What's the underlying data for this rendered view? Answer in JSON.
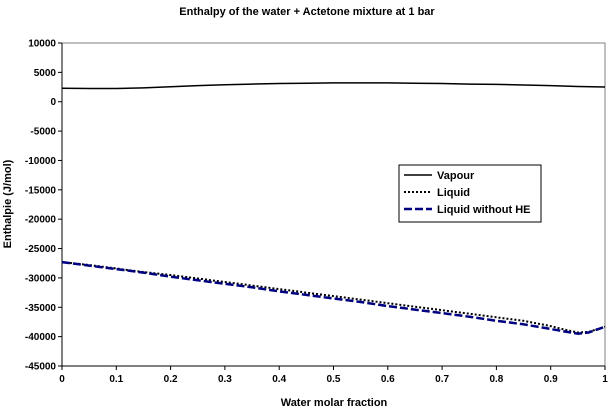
{
  "chart_data": {
    "type": "line",
    "title": "Enthalpy of the water + Actetone mixture at 1 bar",
    "xlabel": "Water molar fraction",
    "ylabel": "Enthalpie (J/mol)",
    "xlim": [
      0,
      1
    ],
    "ylim": [
      -45000,
      10000
    ],
    "xticks": [
      0,
      0.1,
      0.2,
      0.3,
      0.4,
      0.5,
      0.6,
      0.7,
      0.8,
      0.9,
      1
    ],
    "xtick_labels": [
      "0",
      "0.1",
      "0.2",
      "0.3",
      "0.4",
      "0.5",
      "0.6",
      "0.7",
      "0.8",
      "0.9",
      "1"
    ],
    "yticks": [
      10000,
      5000,
      0,
      -5000,
      -10000,
      -15000,
      -20000,
      -25000,
      -30000,
      -35000,
      -40000,
      -45000
    ],
    "ytick_labels": [
      "10000",
      "5000",
      "0",
      "-5000",
      "-10000",
      "-15000",
      "-20000",
      "-25000",
      "-30000",
      "-35000",
      "-40000",
      "-45000"
    ],
    "grid": false,
    "legend_position": "right-middle",
    "series": [
      {
        "name": "Vapour",
        "color": "#000000",
        "style": "solid",
        "x": [
          0,
          0.05,
          0.1,
          0.15,
          0.2,
          0.25,
          0.3,
          0.35,
          0.4,
          0.45,
          0.5,
          0.55,
          0.6,
          0.65,
          0.7,
          0.75,
          0.8,
          0.85,
          0.9,
          0.95,
          1
        ],
        "y": [
          2300,
          2250,
          2250,
          2350,
          2550,
          2750,
          2900,
          3000,
          3100,
          3150,
          3200,
          3200,
          3200,
          3150,
          3100,
          3000,
          2950,
          2850,
          2750,
          2600,
          2500
        ]
      },
      {
        "name": "Liquid",
        "color": "#000000",
        "style": "dotted",
        "x": [
          0,
          0.05,
          0.1,
          0.15,
          0.2,
          0.25,
          0.3,
          0.35,
          0.4,
          0.45,
          0.5,
          0.55,
          0.6,
          0.65,
          0.7,
          0.75,
          0.8,
          0.85,
          0.9,
          0.93,
          0.95,
          0.97,
          1
        ],
        "y": [
          -27300,
          -27800,
          -28400,
          -29000,
          -29500,
          -30100,
          -30700,
          -31300,
          -31900,
          -32500,
          -33100,
          -33700,
          -34300,
          -34900,
          -35500,
          -36100,
          -36700,
          -37300,
          -38200,
          -38900,
          -39300,
          -39200,
          -38300
        ]
      },
      {
        "name": "Liquid without HE",
        "color": "#000080",
        "style": "dashed",
        "x": [
          0,
          0.05,
          0.1,
          0.15,
          0.2,
          0.25,
          0.3,
          0.35,
          0.4,
          0.45,
          0.5,
          0.55,
          0.6,
          0.65,
          0.7,
          0.75,
          0.8,
          0.85,
          0.9,
          0.93,
          0.95,
          0.97,
          1
        ],
        "y": [
          -27300,
          -27900,
          -28500,
          -29100,
          -29800,
          -30400,
          -31000,
          -31600,
          -32300,
          -32900,
          -33500,
          -34100,
          -34800,
          -35400,
          -36000,
          -36600,
          -37300,
          -37900,
          -38700,
          -39200,
          -39500,
          -39300,
          -38300
        ]
      }
    ]
  }
}
